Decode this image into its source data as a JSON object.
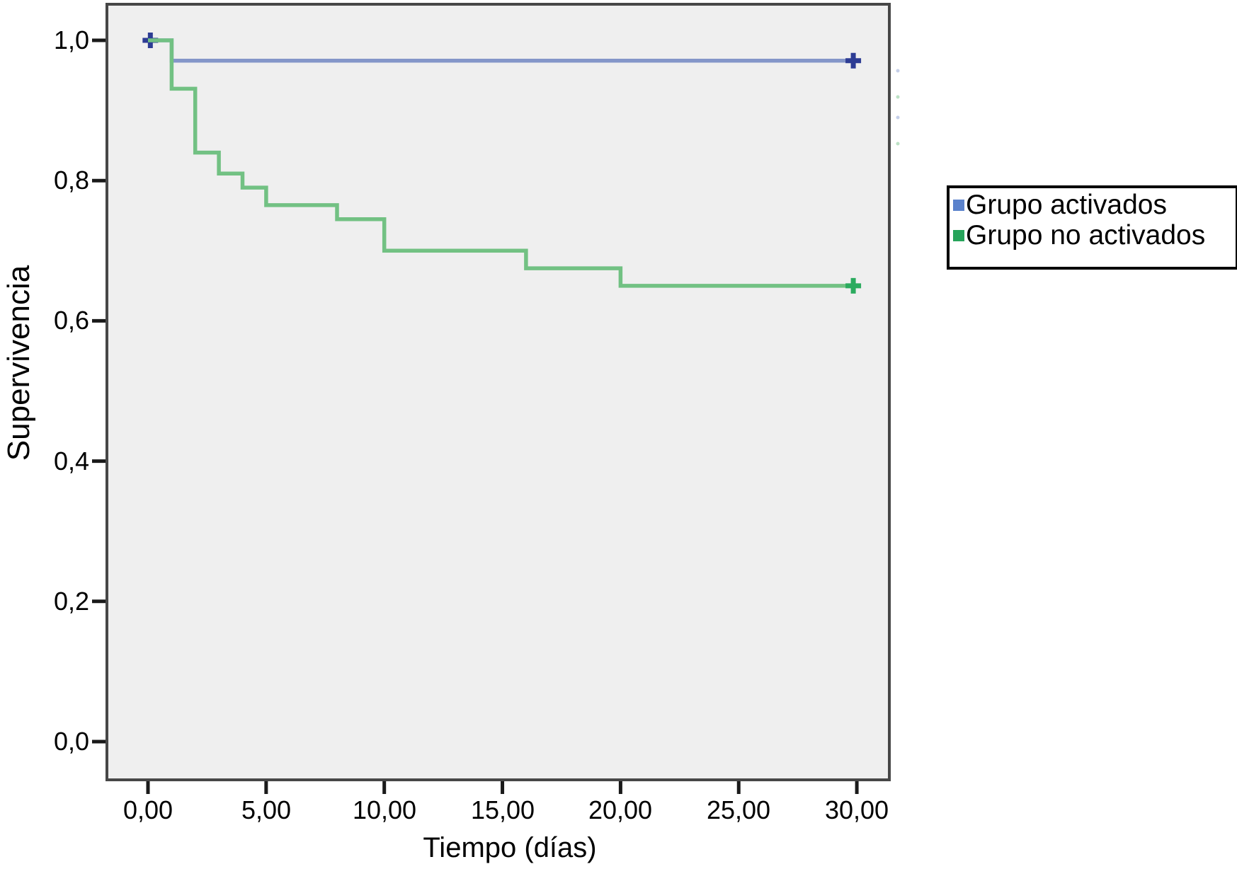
{
  "figure": {
    "kind": "kaplan-meier-survival-plot",
    "background_color": "#ffffff",
    "plot_background_color": "#efefef",
    "frame_color": "#474747"
  },
  "chart_data": {
    "type": "line",
    "subtype": "step-survival",
    "title": "",
    "xlabel": "Tiempo (días)",
    "ylabel": "Supervivencia",
    "xlim": [
      -1.77,
      31.37
    ],
    "ylim": [
      -0.055,
      1.052
    ],
    "grid": false,
    "legend_position": "right-outside",
    "x_ticks": [
      {
        "value": 0,
        "label": "0,00"
      },
      {
        "value": 5,
        "label": "5,00"
      },
      {
        "value": 10,
        "label": "10,00"
      },
      {
        "value": 15,
        "label": "15,00"
      },
      {
        "value": 20,
        "label": "20,00"
      },
      {
        "value": 25,
        "label": "25,00"
      },
      {
        "value": 30,
        "label": "30,00"
      }
    ],
    "y_ticks": [
      {
        "value": 1.0,
        "label": "1,0"
      },
      {
        "value": 0.8,
        "label": "0,8"
      },
      {
        "value": 0.6,
        "label": "0,6"
      },
      {
        "value": 0.4,
        "label": "0,4"
      },
      {
        "value": 0.2,
        "label": "0,2"
      },
      {
        "value": 0.0,
        "label": "0,0"
      }
    ],
    "series": [
      {
        "name": "Grupo activados",
        "line_color": "#8496c9",
        "censor_color": "#2d3c94",
        "swatch_color": "#5b82cc",
        "steps": [
          [
            0,
            1.0
          ],
          [
            1,
            1.0
          ],
          [
            1,
            0.971
          ],
          [
            30,
            0.971
          ]
        ],
        "censor_marks": [
          [
            0.1,
            1.0
          ],
          [
            29.85,
            0.971
          ]
        ]
      },
      {
        "name": "Grupo no activados",
        "line_color": "#72c183",
        "censor_color": "#2bab5e",
        "swatch_color": "#27a45b",
        "steps": [
          [
            0,
            1.0
          ],
          [
            1,
            1.0
          ],
          [
            1,
            0.931
          ],
          [
            2,
            0.931
          ],
          [
            2,
            0.84
          ],
          [
            3,
            0.84
          ],
          [
            3,
            0.81
          ],
          [
            4,
            0.81
          ],
          [
            4,
            0.79
          ],
          [
            5,
            0.79
          ],
          [
            5,
            0.765
          ],
          [
            8,
            0.765
          ],
          [
            8,
            0.745
          ],
          [
            10,
            0.745
          ],
          [
            10,
            0.7
          ],
          [
            16,
            0.7
          ],
          [
            16,
            0.675
          ],
          [
            20,
            0.675
          ],
          [
            20,
            0.65
          ],
          [
            30,
            0.65
          ]
        ],
        "censor_marks": [
          [
            29.85,
            0.65
          ]
        ]
      }
    ]
  }
}
